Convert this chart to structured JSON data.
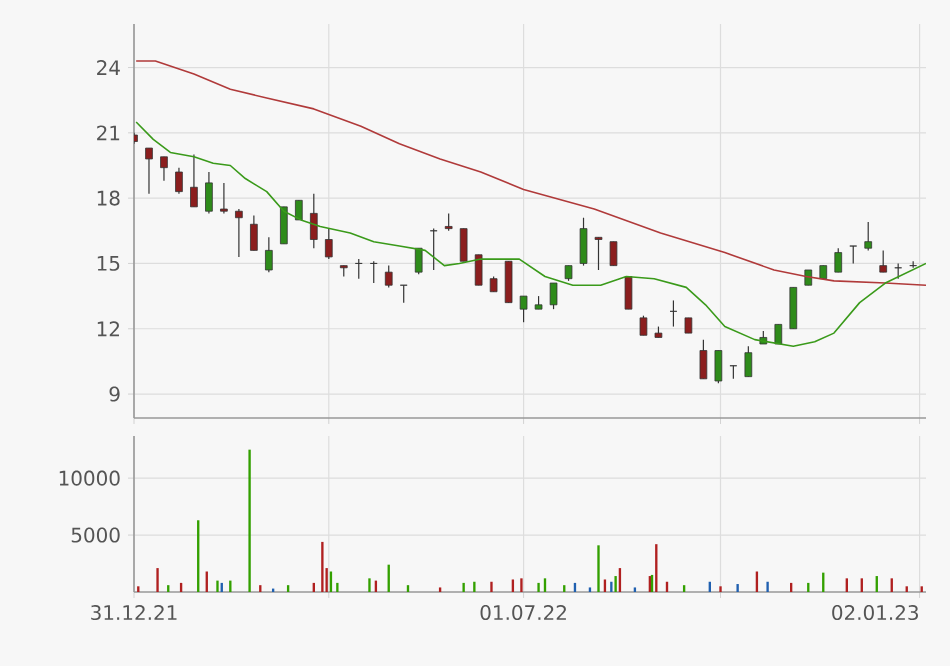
{
  "chart_data": [
    {
      "type": "candlestick",
      "xlim": [
        "2021-12-31",
        "2023-01-05"
      ],
      "ylim": [
        7.9,
        26
      ],
      "yticks": [
        9,
        12,
        15,
        18,
        21,
        24
      ],
      "grid": true,
      "tick_labels": "y",
      "xticks": [
        {
          "value": "2021-12-31",
          "label": null
        },
        {
          "value": "2022-04-01",
          "label": null
        },
        {
          "value": "2022-07-01",
          "label": null
        },
        {
          "value": "2022-10-01",
          "label": null
        },
        {
          "value": "2023-01-02",
          "label": null
        }
      ],
      "series": [
        {
          "type": "candlestick",
          "x": [
            "2021-12-31",
            "2022-01-07",
            "2022-01-14",
            "2022-01-21",
            "2022-01-28",
            "2022-02-04",
            "2022-02-11",
            "2022-02-18",
            "2022-02-25",
            "2022-03-04",
            "2022-03-11",
            "2022-03-18",
            "2022-03-25",
            "2022-04-01",
            "2022-04-08",
            "2022-04-15",
            "2022-04-22",
            "2022-04-29",
            "2022-05-06",
            "2022-05-13",
            "2022-05-20",
            "2022-05-27",
            "2022-06-03",
            "2022-06-10",
            "2022-06-17",
            "2022-06-24",
            "2022-07-01",
            "2022-07-08",
            "2022-07-15",
            "2022-07-22",
            "2022-07-29",
            "2022-08-05",
            "2022-08-12",
            "2022-08-19",
            "2022-08-26",
            "2022-09-02",
            "2022-09-09",
            "2022-09-16",
            "2022-09-23",
            "2022-09-30",
            "2022-10-07",
            "2022-10-14",
            "2022-10-21",
            "2022-10-28",
            "2022-11-04",
            "2022-11-11",
            "2022-11-18",
            "2022-11-25",
            "2022-12-02",
            "2022-12-09",
            "2022-12-16",
            "2022-12-23",
            "2022-12-30"
          ],
          "ohlc": [
            [
              20.9,
              21.0,
              20.5,
              20.6
            ],
            [
              20.3,
              20.3,
              18.2,
              19.8
            ],
            [
              19.9,
              19.9,
              18.8,
              19.4
            ],
            [
              19.2,
              19.4,
              18.2,
              18.3
            ],
            [
              18.5,
              20.0,
              17.6,
              17.6
            ],
            [
              17.4,
              19.2,
              17.3,
              18.7
            ],
            [
              17.5,
              18.7,
              17.3,
              17.4
            ],
            [
              17.4,
              17.5,
              15.3,
              17.1
            ],
            [
              16.8,
              17.2,
              15.6,
              15.6
            ],
            [
              14.7,
              16.2,
              14.6,
              15.6
            ],
            [
              15.9,
              17.6,
              15.9,
              17.6
            ],
            [
              17.0,
              17.9,
              17.0,
              17.9
            ],
            [
              17.3,
              18.2,
              15.7,
              16.1
            ],
            [
              16.1,
              16.6,
              15.2,
              15.3
            ],
            [
              14.9,
              14.9,
              14.4,
              14.8
            ],
            [
              15.0,
              15.2,
              14.3,
              15.0
            ],
            [
              15.0,
              15.1,
              14.1,
              15.0
            ],
            [
              14.6,
              14.9,
              13.9,
              14.0
            ],
            [
              14.0,
              14.0,
              13.2,
              14.0
            ],
            [
              14.6,
              15.7,
              14.5,
              15.7
            ],
            [
              16.5,
              16.6,
              14.7,
              16.5
            ],
            [
              16.7,
              17.3,
              16.5,
              16.6
            ],
            [
              16.6,
              16.6,
              15.1,
              15.1
            ],
            [
              15.4,
              15.4,
              14.0,
              14.0
            ],
            [
              14.3,
              14.4,
              13.7,
              13.7
            ],
            [
              15.1,
              15.1,
              13.2,
              13.2
            ],
            [
              12.9,
              13.5,
              12.3,
              13.5
            ],
            [
              12.9,
              13.5,
              12.9,
              13.1
            ],
            [
              13.1,
              14.1,
              12.9,
              14.1
            ],
            [
              14.3,
              14.9,
              14.2,
              14.9
            ],
            [
              15.0,
              17.1,
              14.9,
              16.6
            ],
            [
              16.2,
              16.2,
              14.7,
              16.1
            ],
            [
              16.0,
              16.0,
              14.9,
              14.9
            ],
            [
              14.4,
              14.4,
              12.9,
              12.9
            ],
            [
              12.5,
              12.6,
              11.7,
              11.7
            ],
            [
              11.8,
              12.1,
              11.6,
              11.6
            ],
            [
              12.8,
              13.3,
              12.1,
              12.8
            ],
            [
              12.5,
              12.5,
              11.8,
              11.8
            ],
            [
              11.0,
              11.5,
              9.7,
              9.7
            ],
            [
              9.6,
              11.0,
              9.5,
              11.0
            ],
            [
              10.3,
              10.3,
              9.7,
              10.3
            ],
            [
              9.8,
              11.2,
              9.8,
              10.9
            ],
            [
              11.3,
              11.9,
              11.3,
              11.6
            ],
            [
              11.3,
              12.2,
              11.3,
              12.2
            ],
            [
              12.0,
              13.9,
              12.0,
              13.9
            ],
            [
              14.0,
              14.7,
              14.0,
              14.7
            ],
            [
              14.3,
              14.9,
              14.3,
              14.9
            ],
            [
              14.6,
              15.7,
              14.6,
              15.5
            ],
            [
              15.8,
              15.8,
              15.0,
              15.8
            ],
            [
              15.7,
              16.9,
              15.6,
              16.0
            ],
            [
              14.9,
              15.6,
              14.6,
              14.6
            ],
            [
              14.8,
              15.0,
              14.3,
              14.8
            ],
            [
              14.9,
              15.1,
              14.8,
              14.9
            ]
          ],
          "colors": [
            "#8b1e1e",
            "#8b1e1e",
            "#8b1e1e",
            "#8b1e1e",
            "#8b1e1e",
            "#2e8b1a",
            "#8b1e1e",
            "#8b1e1e",
            "#8b1e1e",
            "#2e8b1a",
            "#2e8b1a",
            "#2e8b1a",
            "#8b1e1e",
            "#8b1e1e",
            "#8b1e1e",
            "#333333",
            "#333333",
            "#8b1e1e",
            "#333333",
            "#2e8b1a",
            "#333333",
            "#8b1e1e",
            "#8b1e1e",
            "#8b1e1e",
            "#8b1e1e",
            "#8b1e1e",
            "#2e8b1a",
            "#2e8b1a",
            "#2e8b1a",
            "#2e8b1a",
            "#2e8b1a",
            "#8b1e1e",
            "#8b1e1e",
            "#8b1e1e",
            "#8b1e1e",
            "#8b1e1e",
            "#333333",
            "#8b1e1e",
            "#8b1e1e",
            "#2e8b1a",
            "#333333",
            "#2e8b1a",
            "#2e8b1a",
            "#2e8b1a",
            "#2e8b1a",
            "#2e8b1a",
            "#2e8b1a",
            "#2e8b1a",
            "#333333",
            "#2e8b1a",
            "#8b1e1e",
            "#333333",
            "#333333"
          ]
        },
        {
          "type": "line",
          "color": "#b03a3a",
          "x": [
            "2022-01-01",
            "2022-01-10",
            "2022-01-28",
            "2022-02-14",
            "2022-03-03",
            "2022-03-25",
            "2022-04-16",
            "2022-05-04",
            "2022-05-23",
            "2022-06-11",
            "2022-07-01",
            "2022-08-03",
            "2022-09-03",
            "2022-10-03",
            "2022-10-26",
            "2022-11-10",
            "2022-11-23",
            "2022-12-17",
            "2023-01-05"
          ],
          "values": [
            24.3,
            24.3,
            23.7,
            23.0,
            22.6,
            22.1,
            21.3,
            20.5,
            19.8,
            19.2,
            18.4,
            17.5,
            16.4,
            15.5,
            14.7,
            14.4,
            14.2,
            14.1,
            14.0
          ]
        },
        {
          "type": "line",
          "color": "#3a9a1a",
          "x": [
            "2022-01-01",
            "2022-01-09",
            "2022-01-17",
            "2022-01-28",
            "2022-02-06",
            "2022-02-14",
            "2022-02-21",
            "2022-03-03",
            "2022-03-11",
            "2022-03-19",
            "2022-03-28",
            "2022-04-11",
            "2022-04-22",
            "2022-05-04",
            "2022-05-16",
            "2022-05-25",
            "2022-06-01",
            "2022-06-11",
            "2022-06-29",
            "2022-07-11",
            "2022-07-24",
            "2022-08-06",
            "2022-08-18",
            "2022-08-31",
            "2022-09-15",
            "2022-09-24",
            "2022-10-03",
            "2022-10-17",
            "2022-11-04",
            "2022-11-14",
            "2022-11-23",
            "2022-12-05",
            "2022-12-17",
            "2023-01-05"
          ],
          "values": [
            21.5,
            20.7,
            20.1,
            19.9,
            19.6,
            19.5,
            18.9,
            18.3,
            17.4,
            17.0,
            16.7,
            16.4,
            16.0,
            15.8,
            15.6,
            14.9,
            15.0,
            15.2,
            15.2,
            14.4,
            14.0,
            14.0,
            14.4,
            14.3,
            13.9,
            13.1,
            12.1,
            11.5,
            11.2,
            11.4,
            11.8,
            13.2,
            14.1,
            15.0
          ]
        }
      ]
    },
    {
      "type": "bar",
      "xlim": [
        "2021-12-31",
        "2023-01-05"
      ],
      "ylim": [
        0,
        13700
      ],
      "yticks": [
        5000,
        10000
      ],
      "grid": true,
      "xticks": [
        {
          "value": "2021-12-31",
          "label": "31.12.21"
        },
        {
          "value": "2022-04-01",
          "label": null
        },
        {
          "value": "2022-07-01",
          "label": "01.07.22"
        },
        {
          "value": "2022-10-01",
          "label": null
        },
        {
          "value": "2023-01-02",
          "label": "02.01.23"
        }
      ],
      "x": [
        "2022-01-02",
        "2022-01-11",
        "2022-01-16",
        "2022-01-22",
        "2022-01-30",
        "2022-02-03",
        "2022-02-08",
        "2022-02-10",
        "2022-02-14",
        "2022-02-23",
        "2022-02-28",
        "2022-03-06",
        "2022-03-13",
        "2022-03-25",
        "2022-03-29",
        "2022-03-31",
        "2022-04-02",
        "2022-04-05",
        "2022-04-20",
        "2022-04-23",
        "2022-04-29",
        "2022-05-08",
        "2022-05-23",
        "2022-06-03",
        "2022-06-08",
        "2022-06-16",
        "2022-06-26",
        "2022-06-30",
        "2022-07-08",
        "2022-07-11",
        "2022-07-20",
        "2022-07-25",
        "2022-08-01",
        "2022-08-05",
        "2022-08-08",
        "2022-08-11",
        "2022-08-13",
        "2022-08-15",
        "2022-08-22",
        "2022-08-29",
        "2022-08-30",
        "2022-09-01",
        "2022-09-06",
        "2022-09-14",
        "2022-09-26",
        "2022-10-01",
        "2022-10-09",
        "2022-10-18",
        "2022-10-23",
        "2022-11-03",
        "2022-11-11",
        "2022-11-18",
        "2022-11-29",
        "2022-12-06",
        "2022-12-13",
        "2022-12-20",
        "2022-12-27",
        "2023-01-03"
      ],
      "values": [
        500,
        2100,
        600,
        800,
        6300,
        1800,
        1000,
        800,
        1000,
        12500,
        600,
        300,
        600,
        800,
        4400,
        2100,
        1800,
        800,
        1200,
        1000,
        2400,
        600,
        400,
        800,
        900,
        900,
        1100,
        1200,
        800,
        1200,
        600,
        800,
        400,
        4100,
        1100,
        900,
        1400,
        2100,
        400,
        1400,
        1500,
        4200,
        900,
        600,
        900,
        500,
        700,
        1800,
        900,
        800,
        800,
        1700,
        1200,
        1200,
        1400,
        1200,
        500,
        500
      ],
      "colors": [
        "#b02020",
        "#b02020",
        "#33a000",
        "#b02020",
        "#33a000",
        "#b02020",
        "#33a000",
        "#2060b0",
        "#33a000",
        "#33a000",
        "#b02020",
        "#2060b0",
        "#33a000",
        "#b02020",
        "#b02020",
        "#b02020",
        "#33a000",
        "#33a000",
        "#33a000",
        "#b02020",
        "#33a000",
        "#33a000",
        "#b02020",
        "#33a000",
        "#33a000",
        "#b02020",
        "#b02020",
        "#b02020",
        "#33a000",
        "#33a000",
        "#33a000",
        "#2060b0",
        "#2060b0",
        "#33a000",
        "#b02020",
        "#2060b0",
        "#33a000",
        "#b02020",
        "#2060b0",
        "#b02020",
        "#33a000",
        "#b02020",
        "#b02020",
        "#33a000",
        "#2060b0",
        "#b02020",
        "#2060b0",
        "#b02020",
        "#2060b0",
        "#b02020",
        "#33a000",
        "#33a000",
        "#b02020",
        "#b02020",
        "#33a000",
        "#b02020",
        "#b02020",
        "#b02020"
      ]
    }
  ]
}
